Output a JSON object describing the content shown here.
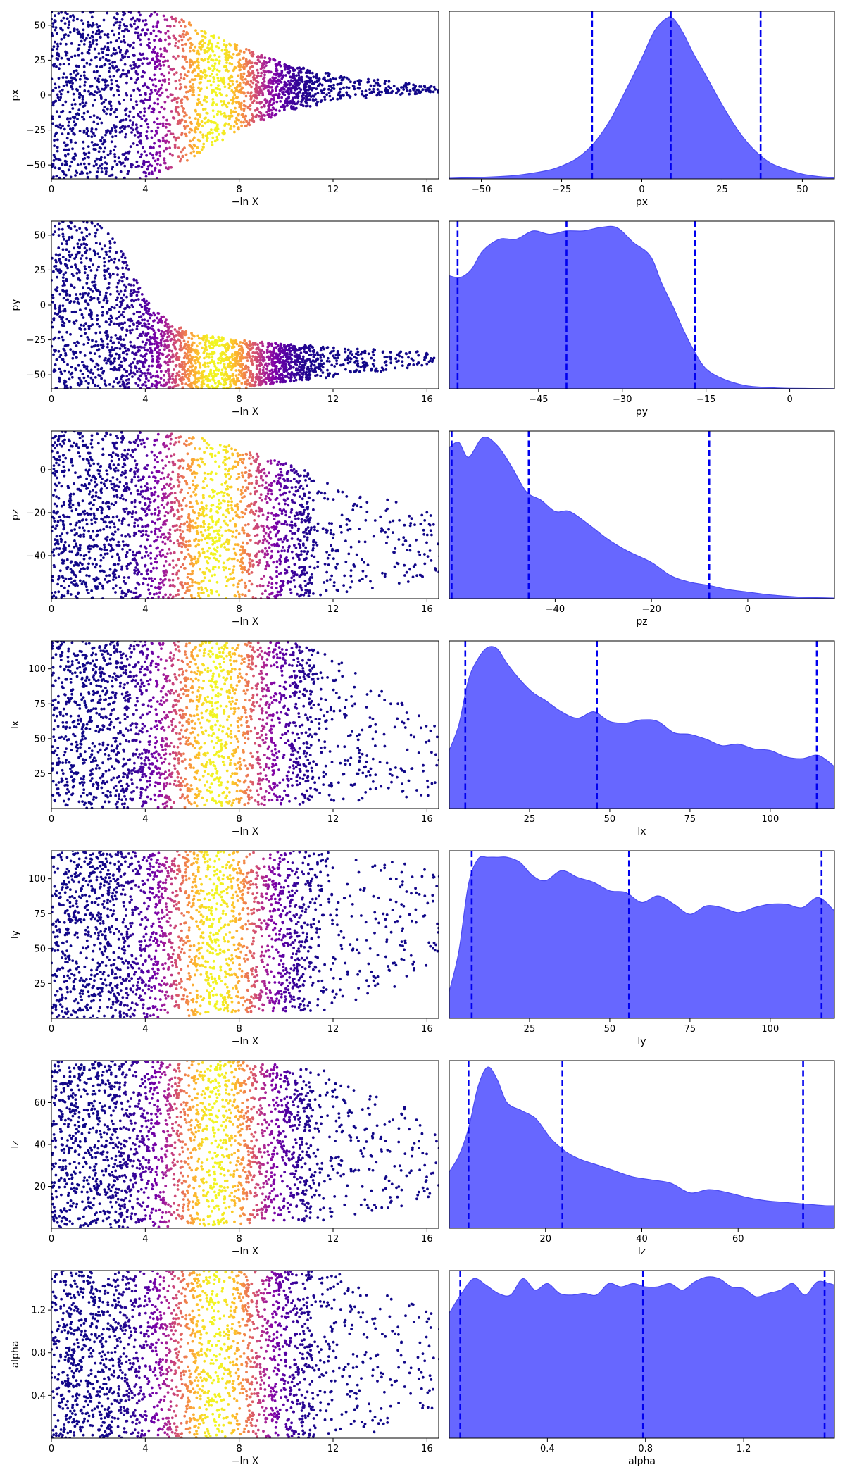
{
  "colors": {
    "kde_fill": "#6767ff",
    "kde_line": "#4b4bf2",
    "quantile_line": "#0000ee",
    "scatter_colormap": "plasma"
  },
  "chart_data": [
    {
      "param": "px",
      "trace": {
        "type": "scatter",
        "xlabel": "−ln X",
        "ylabel": "px",
        "xlim": [
          0,
          16.5
        ],
        "ylim": [
          -60,
          60
        ],
        "xticks": [
          "0",
          "4",
          "8",
          "12",
          "16"
        ],
        "yticks": [
          "50",
          "25",
          "0",
          "−25",
          "−50"
        ],
        "ytick_values": [
          50,
          25,
          0,
          -25,
          -50
        ],
        "envelope": {
          "x": [
            0,
            4.5,
            5.5,
            8,
            10,
            12,
            14,
            16.5
          ],
          "upper": [
            60,
            60,
            55,
            35,
            22,
            15,
            11,
            6
          ],
          "lower": [
            -60,
            -60,
            -50,
            -25,
            -12,
            -5,
            -1,
            2
          ]
        },
        "color_peak_x": 7.0
      },
      "kde": {
        "type": "area",
        "xlabel": "px",
        "xlim": [
          -60,
          60
        ],
        "xticks": [
          "−50",
          "−25",
          "0",
          "25",
          "50"
        ],
        "xtick_values": [
          -50,
          -25,
          0,
          25,
          50
        ],
        "quantiles": [
          -15.5,
          9,
          37
        ],
        "x": [
          -60,
          -50,
          -40,
          -30,
          -25,
          -20,
          -15,
          -10,
          -5,
          0,
          4,
          8,
          10,
          13,
          16,
          20,
          25,
          30,
          35,
          40,
          45,
          50,
          55,
          60
        ],
        "y": [
          0.004,
          0.01,
          0.02,
          0.05,
          0.08,
          0.13,
          0.22,
          0.36,
          0.55,
          0.75,
          0.92,
          1.0,
          0.99,
          0.9,
          0.78,
          0.64,
          0.46,
          0.3,
          0.18,
          0.1,
          0.06,
          0.03,
          0.015,
          0.008
        ]
      }
    },
    {
      "param": "py",
      "trace": {
        "type": "scatter",
        "xlabel": "−ln X",
        "ylabel": "py",
        "xlim": [
          0,
          16.5
        ],
        "ylim": [
          -60,
          60
        ],
        "xticks": [
          "0",
          "4",
          "8",
          "12",
          "16"
        ],
        "yticks": [
          "50",
          "25",
          "0",
          "−25",
          "−50"
        ],
        "ytick_values": [
          50,
          25,
          0,
          -25,
          -50
        ],
        "envelope": {
          "x": [
            0,
            2,
            3,
            4,
            5,
            6,
            8,
            10,
            12,
            14,
            16.5
          ],
          "upper": [
            60,
            60,
            40,
            5,
            -12,
            -20,
            -25,
            -28,
            -30,
            -32,
            -34
          ],
          "lower": [
            -60,
            -60,
            -60,
            -60,
            -60,
            -60,
            -60,
            -55,
            -52,
            -48,
            -42
          ]
        },
        "color_peak_x": 7.0
      },
      "kde": {
        "type": "area",
        "xlabel": "py",
        "xlim": [
          -61,
          8
        ],
        "xticks": [
          "−45",
          "−30",
          "−15",
          "0"
        ],
        "xtick_values": [
          -45,
          -30,
          -15,
          0
        ],
        "quantiles": [
          -59.5,
          -40,
          -17
        ],
        "x": [
          -61,
          -59,
          -57,
          -55,
          -52,
          -49,
          -46,
          -43,
          -40,
          -37,
          -34,
          -31,
          -28,
          -25,
          -23,
          -21,
          -19,
          -17,
          -15,
          -12,
          -8,
          -4,
          0,
          8
        ],
        "y": [
          0.68,
          0.67,
          0.72,
          0.83,
          0.9,
          0.9,
          0.95,
          0.93,
          0.95,
          0.95,
          0.97,
          0.97,
          0.88,
          0.8,
          0.64,
          0.5,
          0.35,
          0.22,
          0.12,
          0.06,
          0.02,
          0.008,
          0.003,
          0.001
        ]
      }
    },
    {
      "param": "pz",
      "trace": {
        "type": "scatter",
        "xlabel": "−ln X",
        "ylabel": "pz",
        "xlim": [
          0,
          16.5
        ],
        "ylim": [
          -60,
          18
        ],
        "xticks": [
          "0",
          "4",
          "8",
          "12",
          "16"
        ],
        "yticks": [
          "0",
          "−20",
          "−40"
        ],
        "ytick_values": [
          0,
          -20,
          -40
        ],
        "envelope": {
          "x": [
            0,
            4,
            6,
            8,
            10,
            12,
            14,
            16.5
          ],
          "upper": [
            18,
            18,
            16,
            10,
            3,
            -5,
            -12,
            -20
          ],
          "lower": [
            -60,
            -60,
            -60,
            -60,
            -60,
            -58,
            -55,
            -50
          ]
        },
        "color_peak_x": 7.0
      },
      "kde": {
        "type": "area",
        "xlabel": "pz",
        "xlim": [
          -62,
          18
        ],
        "xticks": [
          "−40",
          "−20",
          "0"
        ],
        "xtick_values": [
          -40,
          -20,
          0
        ],
        "quantiles": [
          -61.5,
          -45.5,
          -8
        ],
        "x": [
          -62,
          -60,
          -58,
          -55,
          -52,
          -49,
          -46,
          -43,
          -40,
          -37,
          -33,
          -29,
          -25,
          -20,
          -16,
          -12,
          -8,
          -4,
          0,
          4,
          8,
          12,
          18
        ],
        "y": [
          0.92,
          0.95,
          0.86,
          0.98,
          0.93,
          0.8,
          0.65,
          0.6,
          0.53,
          0.53,
          0.45,
          0.36,
          0.29,
          0.22,
          0.14,
          0.1,
          0.08,
          0.055,
          0.04,
          0.025,
          0.015,
          0.008,
          0.004
        ]
      }
    },
    {
      "param": "lx",
      "trace": {
        "type": "scatter",
        "xlabel": "−ln X",
        "ylabel": "lx",
        "xlim": [
          0,
          16.5
        ],
        "ylim": [
          0,
          120
        ],
        "xticks": [
          "0",
          "4",
          "8",
          "12",
          "16"
        ],
        "yticks": [
          "100",
          "75",
          "50",
          "25"
        ],
        "ytick_values": [
          100,
          75,
          50,
          25
        ],
        "envelope": {
          "x": [
            0,
            4,
            8,
            10,
            12,
            14,
            16.5
          ],
          "upper": [
            120,
            120,
            120,
            120,
            110,
            85,
            60
          ],
          "lower": [
            0,
            0,
            2,
            2,
            4,
            6,
            10
          ]
        },
        "color_peak_x": 7.0
      },
      "kde": {
        "type": "area",
        "xlabel": "lx",
        "xlim": [
          0,
          120
        ],
        "xticks": [
          "25",
          "50",
          "75",
          "100"
        ],
        "xtick_values": [
          25,
          50,
          75,
          100
        ],
        "quantiles": [
          5,
          46,
          114.5
        ],
        "x": [
          0,
          3,
          6,
          9,
          12,
          15,
          18,
          22,
          26,
          30,
          35,
          40,
          45,
          50,
          55,
          60,
          65,
          70,
          75,
          80,
          85,
          90,
          95,
          100,
          105,
          110,
          115,
          120
        ],
        "y": [
          0.36,
          0.52,
          0.8,
          0.93,
          1.0,
          0.99,
          0.9,
          0.8,
          0.72,
          0.67,
          0.6,
          0.56,
          0.6,
          0.54,
          0.53,
          0.55,
          0.54,
          0.47,
          0.46,
          0.43,
          0.39,
          0.4,
          0.37,
          0.36,
          0.32,
          0.31,
          0.33,
          0.26
        ]
      }
    },
    {
      "param": "ly",
      "trace": {
        "type": "scatter",
        "xlabel": "−ln X",
        "ylabel": "ly",
        "xlim": [
          0,
          16.5
        ],
        "ylim": [
          0,
          120
        ],
        "xticks": [
          "0",
          "4",
          "8",
          "12",
          "16"
        ],
        "yticks": [
          "100",
          "75",
          "50",
          "25"
        ],
        "ytick_values": [
          100,
          75,
          50,
          25
        ],
        "envelope": {
          "x": [
            0,
            4,
            8,
            12,
            14,
            16.5
          ],
          "upper": [
            120,
            120,
            120,
            120,
            115,
            105
          ],
          "lower": [
            0,
            0,
            4,
            6,
            15,
            40
          ]
        },
        "color_peak_x": 7.0
      },
      "kde": {
        "type": "area",
        "xlabel": "ly",
        "xlim": [
          0,
          120
        ],
        "xticks": [
          "25",
          "50",
          "75",
          "100"
        ],
        "xtick_values": [
          25,
          50,
          75,
          100
        ],
        "quantiles": [
          7,
          56,
          116
        ],
        "x": [
          0,
          3,
          6,
          9,
          12,
          15,
          18,
          22,
          26,
          30,
          35,
          40,
          45,
          50,
          55,
          60,
          65,
          70,
          75,
          80,
          85,
          90,
          95,
          100,
          105,
          110,
          115,
          120
        ],
        "y": [
          0.16,
          0.4,
          0.8,
          0.95,
          0.96,
          0.96,
          0.96,
          0.93,
          0.85,
          0.82,
          0.88,
          0.84,
          0.81,
          0.76,
          0.75,
          0.69,
          0.73,
          0.68,
          0.62,
          0.67,
          0.66,
          0.63,
          0.66,
          0.68,
          0.68,
          0.66,
          0.72,
          0.64
        ]
      }
    },
    {
      "param": "lz",
      "trace": {
        "type": "scatter",
        "xlabel": "−ln X",
        "ylabel": "lz",
        "xlim": [
          0,
          16.5
        ],
        "ylim": [
          0,
          80
        ],
        "xticks": [
          "0",
          "4",
          "8",
          "12",
          "16"
        ],
        "yticks": [
          "60",
          "40",
          "20"
        ],
        "ytick_values": [
          60,
          40,
          20
        ],
        "envelope": {
          "x": [
            0,
            4,
            8,
            12,
            14,
            16.5
          ],
          "upper": [
            80,
            80,
            80,
            75,
            65,
            50
          ],
          "lower": [
            0,
            0,
            2,
            4,
            8,
            15
          ]
        },
        "color_peak_x": 7.0
      },
      "kde": {
        "type": "area",
        "xlabel": "lz",
        "xlim": [
          0,
          80
        ],
        "xticks": [
          "20",
          "40",
          "60"
        ],
        "xtick_values": [
          20,
          40,
          60
        ],
        "quantiles": [
          4,
          23.5,
          73.5
        ],
        "x": [
          0,
          2,
          4,
          6,
          8,
          10,
          12,
          15,
          18,
          21,
          24,
          27,
          30,
          34,
          38,
          42,
          46,
          50,
          54,
          58,
          62,
          66,
          70,
          74,
          78,
          80
        ],
        "y": [
          0.35,
          0.45,
          0.62,
          0.88,
          1.0,
          0.92,
          0.78,
          0.73,
          0.68,
          0.56,
          0.48,
          0.43,
          0.4,
          0.36,
          0.32,
          0.3,
          0.28,
          0.22,
          0.24,
          0.22,
          0.19,
          0.17,
          0.16,
          0.15,
          0.14,
          0.14
        ]
      }
    },
    {
      "param": "alpha",
      "trace": {
        "type": "scatter",
        "xlabel": "−ln X",
        "ylabel": "alpha",
        "xlim": [
          0,
          16.5
        ],
        "ylim": [
          0,
          1.57
        ],
        "xticks": [
          "0",
          "4",
          "8",
          "12",
          "16"
        ],
        "yticks": [
          "1.2",
          "0.8",
          "0.4"
        ],
        "ytick_values": [
          1.2,
          0.8,
          0.4
        ],
        "envelope": {
          "x": [
            0,
            4,
            8,
            12,
            14,
            16.5
          ],
          "upper": [
            1.57,
            1.57,
            1.57,
            1.57,
            1.4,
            1.15
          ],
          "lower": [
            0,
            0,
            0,
            0,
            0.05,
            0.3
          ]
        },
        "color_peak_x": 7.0
      },
      "kde": {
        "type": "area",
        "xlabel": "alpha",
        "xlim": [
          0,
          1.57
        ],
        "xticks": [
          "0.4",
          "0.8",
          "1.2"
        ],
        "xtick_values": [
          0.4,
          0.8,
          1.2
        ],
        "quantiles": [
          0.045,
          0.79,
          1.53
        ],
        "x": [
          0,
          0.05,
          0.1,
          0.15,
          0.2,
          0.25,
          0.3,
          0.35,
          0.4,
          0.45,
          0.5,
          0.55,
          0.6,
          0.65,
          0.7,
          0.75,
          0.8,
          0.85,
          0.9,
          0.95,
          1.0,
          1.05,
          1.1,
          1.15,
          1.2,
          1.25,
          1.3,
          1.35,
          1.4,
          1.45,
          1.5,
          1.55,
          1.57
        ],
        "y": [
          0.76,
          0.88,
          0.97,
          0.93,
          0.88,
          0.87,
          0.97,
          0.9,
          0.94,
          0.88,
          0.87,
          0.88,
          0.87,
          0.94,
          0.92,
          0.94,
          0.92,
          0.92,
          0.94,
          0.9,
          0.95,
          0.98,
          0.97,
          0.92,
          0.91,
          0.86,
          0.88,
          0.9,
          0.94,
          0.87,
          0.95,
          0.94,
          0.93
        ]
      }
    }
  ]
}
